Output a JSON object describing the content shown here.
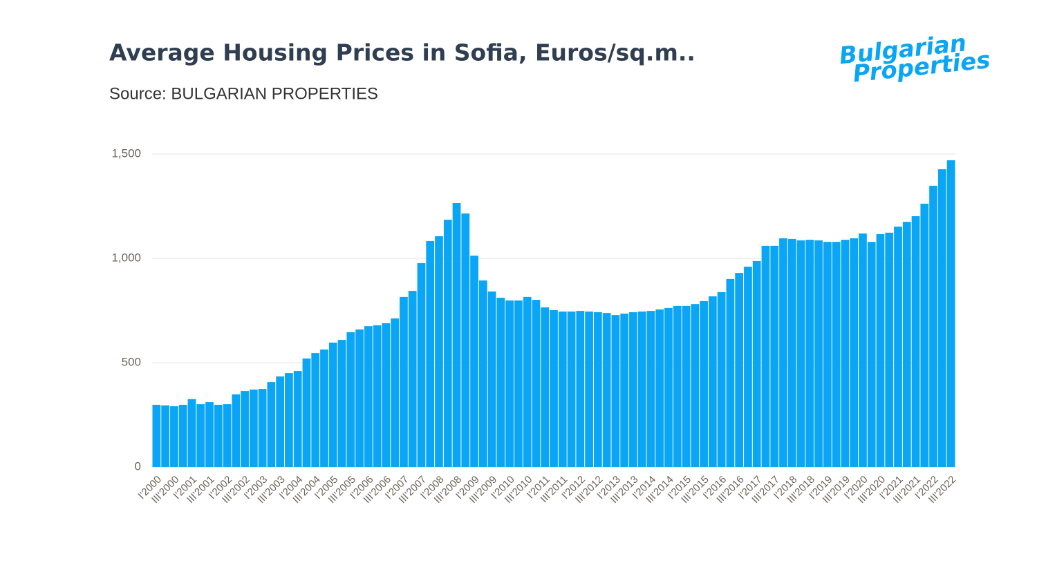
{
  "chart_data": {
    "type": "bar",
    "title": "Average Housing Prices in Sofia, Euros/sq.m..",
    "subtitle": "Source: BULGARIAN PROPERTIES",
    "categories": [
      "I'2000",
      null,
      "III'2000",
      null,
      "I'2001",
      null,
      "III'2001",
      null,
      "I'2002",
      null,
      "III'2002",
      null,
      "I'2003",
      null,
      "III'2003",
      null,
      "I'2004",
      null,
      "III'2004",
      null,
      "I'2005",
      null,
      "III'2005",
      null,
      "I'2006",
      null,
      "III'2006",
      null,
      "I'2007",
      null,
      "III'2007",
      null,
      "I'2008",
      null,
      "III'2008",
      null,
      "I'2009",
      null,
      "III'2009",
      null,
      "I'2010",
      null,
      "III'2010",
      null,
      "I'2011",
      null,
      "III'2011",
      null,
      "I'2012",
      null,
      "III'2012",
      null,
      "I'2013",
      null,
      "III'2013",
      null,
      "I'2014",
      null,
      "III'2014",
      null,
      "I'2015",
      null,
      "III'2015",
      null,
      "I'2016",
      null,
      "III'2016",
      null,
      "I'2017",
      null,
      "III'2017",
      null,
      "I'2018",
      null,
      "III'2018",
      null,
      "I'2019",
      null,
      "III'2019",
      null,
      "I'2020",
      null,
      "III'2020",
      null,
      "I'2021",
      null,
      "III'2021",
      null,
      "I'2022",
      null,
      "III'2022"
    ],
    "values": [
      298,
      295,
      291,
      298,
      325,
      301,
      311,
      298,
      301,
      348,
      364,
      371,
      374,
      407,
      434,
      450,
      460,
      520,
      546,
      563,
      596,
      609,
      646,
      659,
      675,
      679,
      689,
      712,
      815,
      844,
      977,
      1083,
      1106,
      1185,
      1265,
      1215,
      1013,
      894,
      841,
      811,
      798,
      798,
      815,
      801,
      765,
      752,
      745,
      745,
      748,
      745,
      742,
      738,
      728,
      735,
      742,
      745,
      748,
      755,
      762,
      772,
      772,
      781,
      795,
      818,
      838,
      901,
      930,
      960,
      987,
      1060,
      1060,
      1096,
      1093,
      1086,
      1089,
      1086,
      1079,
      1079,
      1089,
      1096,
      1119,
      1079,
      1116,
      1123,
      1152,
      1175,
      1202,
      1262,
      1348,
      1427,
      1470
    ],
    "color": "#0aa6f5",
    "ylim": [
      0,
      1500
    ],
    "yticks": [
      0,
      500,
      {
        "value": 1000,
        "label": "1,000"
      },
      {
        "value": 1500,
        "label": "1,500"
      }
    ],
    "grid": true
  },
  "logo": [
    "Bulgarian",
    "Properties"
  ]
}
